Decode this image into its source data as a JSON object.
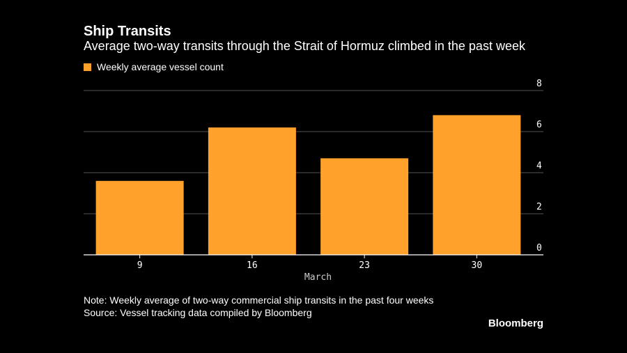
{
  "header": {
    "title": "Ship Transits",
    "subtitle": "Average two-way transits through the Strait of Hormuz climbed in the past week"
  },
  "legend": {
    "label": "Weekly average vessel count"
  },
  "chart_data": {
    "type": "bar",
    "title": "Ship Transits",
    "subtitle": "Average two-way transits through the Strait of Hormuz climbed in the past week",
    "categories": [
      "9",
      "16",
      "23",
      "30"
    ],
    "series": [
      {
        "name": "Weekly average vessel count",
        "values": [
          3.6,
          6.2,
          4.7,
          6.8
        ]
      }
    ],
    "xlabel": "March",
    "ylabel": "",
    "ylim": [
      0,
      8
    ],
    "yticks": [
      0,
      2,
      4,
      6,
      8
    ],
    "yaxis_position": "right",
    "grid": true,
    "legend_position": "top-left",
    "bar_color": "#ffa12a"
  },
  "footer": {
    "note": "Note: Weekly average of two-way commercial ship transits in the past four weeks",
    "source": "Source: Vessel tracking data compiled by Bloomberg",
    "brand": "Bloomberg"
  }
}
